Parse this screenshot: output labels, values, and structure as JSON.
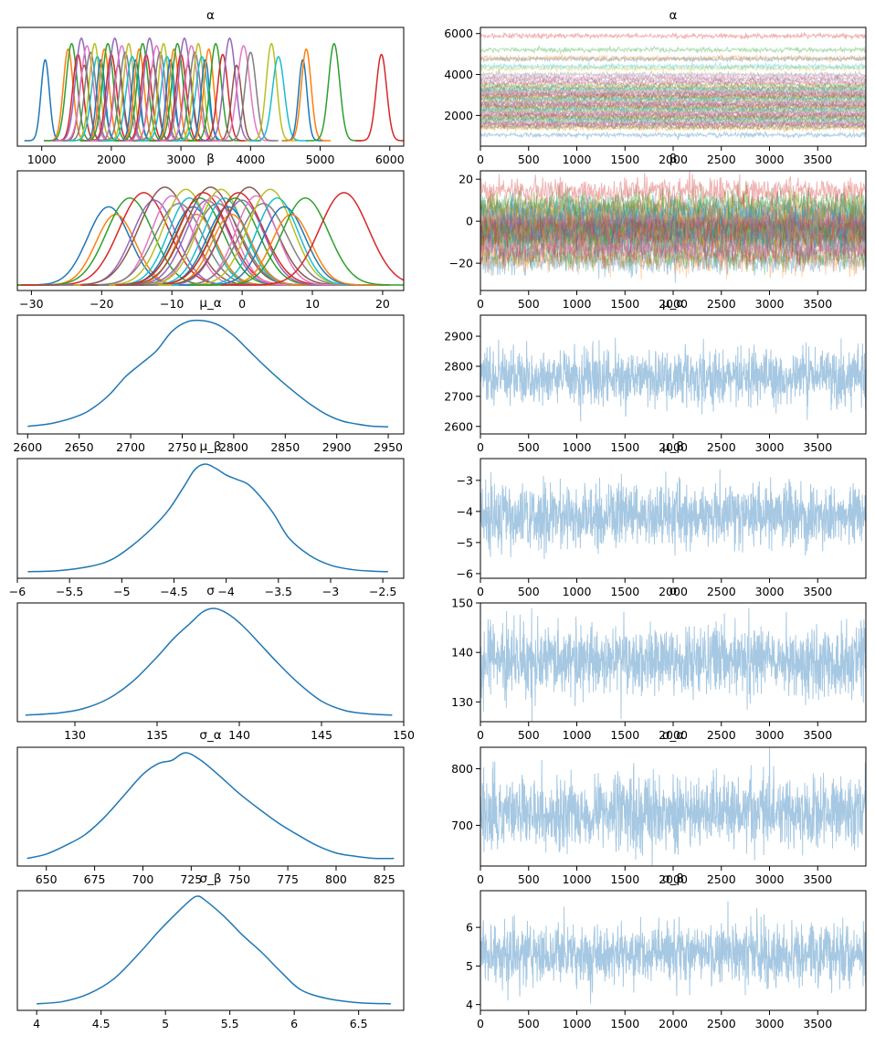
{
  "figure": {
    "layout": "7 rows x 2 columns: left density plots, right trace plots"
  },
  "colors": {
    "single_series": "#1f77b4",
    "trace_single": "#a6c8e2",
    "palette": [
      "#1f77b4",
      "#ff7f0e",
      "#2ca02c",
      "#d62728",
      "#9467bd",
      "#8c564b",
      "#e377c2",
      "#7f7f7f",
      "#bcbd22",
      "#17becf"
    ]
  },
  "chart_data": [
    {
      "type": "line",
      "panel": "density",
      "title": "α",
      "xlim": [
        650,
        6200
      ],
      "xticks": [
        1000,
        2000,
        3000,
        4000,
        5000,
        6000
      ],
      "grid": false,
      "yaxis": "hidden",
      "series_peaks": [
        1050,
        1380,
        1430,
        1520,
        1570,
        1610,
        1650,
        1700,
        1760,
        1800,
        1850,
        1900,
        1950,
        2000,
        2050,
        2100,
        2150,
        2200,
        2250,
        2300,
        2350,
        2400,
        2450,
        2500,
        2550,
        2600,
        2650,
        2700,
        2750,
        2800,
        2850,
        2900,
        2950,
        3000,
        3050,
        3100,
        3150,
        3200,
        3250,
        3300,
        3350,
        3400,
        3500,
        3600,
        3700,
        3800,
        3900,
        4000,
        4300,
        4400,
        4750,
        4800,
        5200,
        5880
      ],
      "series_widths": [
        60,
        70,
        80,
        75,
        85,
        70,
        90,
        80,
        75,
        85
      ],
      "series_heights": [
        0.75,
        0.85,
        0.9,
        0.8,
        0.95,
        0.7,
        0.88,
        0.82,
        0.9,
        0.78
      ]
    },
    {
      "type": "line",
      "panel": "trace",
      "title": "α",
      "xlim": [
        0,
        4000
      ],
      "xticks": [
        0,
        500,
        1000,
        1500,
        2000,
        2500,
        3000,
        3500
      ],
      "ylim": [
        500,
        6300
      ],
      "yticks": [
        2000,
        4000,
        6000
      ],
      "n_draws": 4000,
      "alpha": 0.35,
      "levels": [
        1050,
        1380,
        1430,
        1520,
        1570,
        1610,
        1650,
        1700,
        1760,
        1800,
        1850,
        1900,
        1950,
        2000,
        2050,
        2100,
        2150,
        2200,
        2250,
        2300,
        2350,
        2400,
        2450,
        2500,
        2550,
        2600,
        2650,
        2700,
        2750,
        2800,
        2850,
        2900,
        2950,
        3000,
        3050,
        3100,
        3150,
        3200,
        3250,
        3300,
        3350,
        3400,
        3500,
        3600,
        3700,
        3800,
        3900,
        4000,
        4300,
        4400,
        4750,
        4800,
        5200,
        5880
      ],
      "spread": 60
    },
    {
      "type": "line",
      "panel": "density",
      "title": "β",
      "xlim": [
        -32,
        23
      ],
      "xticks": [
        -30,
        -20,
        -10,
        0,
        10,
        20
      ],
      "grid": false,
      "yaxis": "hidden",
      "series_peaks": [
        -19,
        -18,
        -16,
        -14,
        -12.5,
        -11,
        -10,
        -9,
        -8,
        -7.5,
        -7,
        -6.5,
        -6,
        -5.5,
        -5,
        -4.5,
        -4,
        -3.5,
        -3,
        -2.5,
        -2,
        -1.5,
        -1,
        -0.5,
        0,
        1,
        2,
        3,
        4,
        5,
        6,
        7,
        9,
        14.5
      ],
      "series_widths": [
        3.0,
        2.8,
        3.3,
        3.5,
        3.1,
        3.6,
        2.9,
        3.4,
        3.2,
        3.0
      ],
      "series_heights": [
        0.72,
        0.65,
        0.8,
        0.85,
        0.78,
        0.9,
        0.82,
        0.75,
        0.88,
        0.8
      ]
    },
    {
      "type": "line",
      "panel": "trace",
      "title": "β",
      "xlim": [
        0,
        4000
      ],
      "xticks": [
        0,
        500,
        1000,
        1500,
        2000,
        2500,
        3000,
        3500
      ],
      "ylim": [
        -33,
        24
      ],
      "yticks": [
        -20,
        0,
        20
      ],
      "n_draws": 4000,
      "alpha": 0.35,
      "levels": [
        -19,
        -18,
        -16,
        -14,
        -12.5,
        -11,
        -10,
        -9,
        -8,
        -7.5,
        -7,
        -6.5,
        -6,
        -5.5,
        -5,
        -4.5,
        -4,
        -3.5,
        -3,
        -2.5,
        -2,
        -1.5,
        -1,
        -0.5,
        0,
        1,
        2,
        3,
        4,
        5,
        6,
        7,
        9,
        14.5
      ],
      "spread": 3.2
    },
    {
      "type": "line",
      "panel": "density",
      "title": "μ_α",
      "xlim": [
        2590,
        2965
      ],
      "xticks": [
        2600,
        2650,
        2700,
        2750,
        2800,
        2850,
        2900,
        2950
      ],
      "grid": false,
      "yaxis": "hidden",
      "x": [
        2600,
        2625,
        2650,
        2665,
        2680,
        2695,
        2710,
        2725,
        2740,
        2755,
        2770,
        2785,
        2800,
        2815,
        2830,
        2845,
        2860,
        2875,
        2890,
        2905,
        2920,
        2935,
        2950
      ],
      "y": [
        0.02,
        0.05,
        0.12,
        0.2,
        0.32,
        0.48,
        0.6,
        0.72,
        0.9,
        0.99,
        1.0,
        0.96,
        0.86,
        0.72,
        0.58,
        0.45,
        0.33,
        0.22,
        0.13,
        0.07,
        0.04,
        0.02,
        0.015
      ]
    },
    {
      "type": "line",
      "panel": "trace",
      "title": "μ_α",
      "xlim": [
        0,
        4000
      ],
      "xticks": [
        0,
        500,
        1000,
        1500,
        2000,
        2500,
        3000,
        3500
      ],
      "ylim": [
        2575,
        2970
      ],
      "yticks": [
        2600,
        2700,
        2800,
        2900
      ],
      "n_draws": 4000,
      "mean": 2766,
      "sd": 45
    },
    {
      "type": "line",
      "panel": "density",
      "title": "μ_β",
      "xlim": [
        -6.0,
        -2.3
      ],
      "xticks": [
        -6.0,
        -5.5,
        -5.0,
        -4.5,
        -4.0,
        -3.5,
        -3.0,
        -2.5
      ],
      "grid": false,
      "yaxis": "hidden",
      "x": [
        -5.9,
        -5.6,
        -5.3,
        -5.1,
        -4.9,
        -4.7,
        -4.55,
        -4.4,
        -4.3,
        -4.2,
        -4.1,
        -4.0,
        -3.9,
        -3.8,
        -3.7,
        -3.55,
        -3.4,
        -3.2,
        -3.0,
        -2.8,
        -2.6,
        -2.45
      ],
      "y": [
        0.01,
        0.02,
        0.06,
        0.12,
        0.25,
        0.42,
        0.58,
        0.8,
        0.95,
        1.0,
        0.96,
        0.9,
        0.86,
        0.82,
        0.73,
        0.55,
        0.32,
        0.16,
        0.07,
        0.03,
        0.015,
        0.01
      ]
    },
    {
      "type": "line",
      "panel": "trace",
      "title": "μ_β",
      "xlim": [
        0,
        4000
      ],
      "xticks": [
        0,
        500,
        1000,
        1500,
        2000,
        2500,
        3000,
        3500
      ],
      "ylim": [
        -6.15,
        -2.3
      ],
      "yticks": [
        -6,
        -5,
        -4,
        -3
      ],
      "n_draws": 4000,
      "mean": -4.15,
      "sd": 0.5
    },
    {
      "type": "line",
      "panel": "density",
      "title": "σ",
      "xlim": [
        126.5,
        150
      ],
      "xticks": [
        130,
        135,
        140,
        145,
        150
      ],
      "grid": false,
      "yaxis": "hidden",
      "x": [
        127,
        129,
        130.5,
        132,
        133.5,
        135,
        136,
        137,
        137.8,
        138.5,
        139.3,
        140.2,
        141.2,
        142.3,
        143.5,
        145,
        146.5,
        148,
        149.3
      ],
      "y": [
        0.01,
        0.03,
        0.07,
        0.16,
        0.32,
        0.55,
        0.72,
        0.86,
        0.97,
        1.0,
        0.95,
        0.84,
        0.68,
        0.5,
        0.32,
        0.14,
        0.05,
        0.02,
        0.01
      ]
    },
    {
      "type": "line",
      "panel": "trace",
      "title": "σ",
      "xlim": [
        0,
        4000
      ],
      "xticks": [
        0,
        500,
        1000,
        1500,
        2000,
        2500,
        3000,
        3500
      ],
      "ylim": [
        126,
        150
      ],
      "yticks": [
        130,
        140,
        150
      ],
      "n_draws": 4000,
      "mean": 138.3,
      "sd": 3.5
    },
    {
      "type": "line",
      "panel": "density",
      "title": "σ_α",
      "xlim": [
        635,
        835
      ],
      "xticks": [
        650,
        675,
        700,
        725,
        750,
        775,
        800,
        825
      ],
      "grid": false,
      "yaxis": "hidden",
      "x": [
        640,
        650,
        660,
        670,
        680,
        690,
        700,
        708,
        715,
        722,
        730,
        740,
        750,
        760,
        770,
        780,
        790,
        800,
        810,
        820,
        830
      ],
      "y": [
        0.02,
        0.06,
        0.14,
        0.24,
        0.4,
        0.6,
        0.8,
        0.9,
        0.93,
        1.0,
        0.93,
        0.78,
        0.62,
        0.48,
        0.35,
        0.24,
        0.14,
        0.07,
        0.04,
        0.02,
        0.02
      ]
    },
    {
      "type": "line",
      "panel": "trace",
      "title": "σ_α",
      "xlim": [
        0,
        4000
      ],
      "xticks": [
        0,
        500,
        1000,
        1500,
        2000,
        2500,
        3000,
        3500
      ],
      "ylim": [
        628,
        838
      ],
      "yticks": [
        700,
        800
      ],
      "n_draws": 4000,
      "mean": 722,
      "sd": 30
    },
    {
      "type": "line",
      "panel": "density",
      "title": "σ_β",
      "xlim": [
        3.85,
        6.85
      ],
      "xticks": [
        4.0,
        4.5,
        5.0,
        5.5,
        6.0,
        6.5
      ],
      "grid": false,
      "yaxis": "hidden",
      "x": [
        4.0,
        4.2,
        4.4,
        4.6,
        4.8,
        4.95,
        5.1,
        5.2,
        5.25,
        5.3,
        5.45,
        5.6,
        5.75,
        5.9,
        6.05,
        6.25,
        6.5,
        6.75
      ],
      "y": [
        0.01,
        0.03,
        0.1,
        0.24,
        0.48,
        0.68,
        0.86,
        0.97,
        1.0,
        0.97,
        0.82,
        0.64,
        0.48,
        0.3,
        0.14,
        0.06,
        0.02,
        0.01
      ]
    },
    {
      "type": "line",
      "panel": "trace",
      "title": "σ_β",
      "xlim": [
        0,
        4000
      ],
      "xticks": [
        0,
        500,
        1000,
        1500,
        2000,
        2500,
        3000,
        3500
      ],
      "ylim": [
        3.85,
        6.95
      ],
      "yticks": [
        4,
        5,
        6
      ],
      "n_draws": 4000,
      "mean": 5.3,
      "sd": 0.38
    }
  ]
}
